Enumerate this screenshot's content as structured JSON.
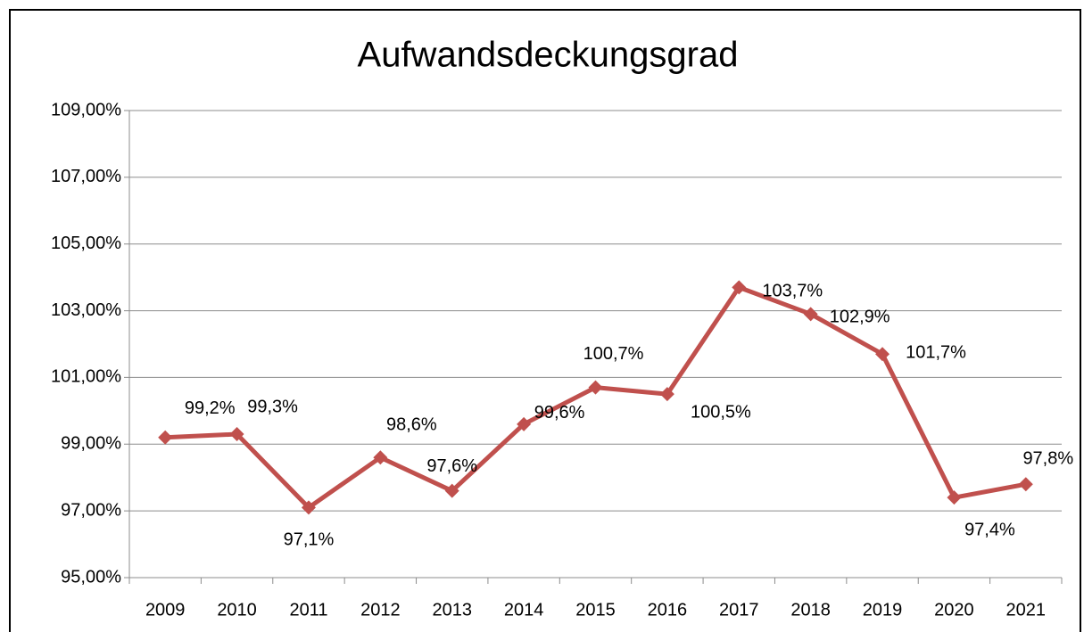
{
  "chart_data": {
    "type": "line",
    "title": "Aufwandsdeckungsgrad",
    "categories": [
      "2009",
      "2010",
      "2011",
      "2012",
      "2013",
      "2014",
      "2015",
      "2016",
      "2017",
      "2018",
      "2019",
      "2020",
      "2021"
    ],
    "series": [
      {
        "name": "Aufwandsdeckungsgrad",
        "color": "#c0504d",
        "values": [
          99.2,
          99.3,
          97.1,
          98.6,
          97.6,
          99.6,
          100.7,
          100.5,
          103.7,
          102.9,
          101.7,
          97.4,
          97.8
        ],
        "value_labels": [
          "99,2%",
          "99,3%",
          "97,1%",
          "98,6%",
          "97,6%",
          "99,6%",
          "100,7%",
          "100,5%",
          "103,7%",
          "102,9%",
          "101,7%",
          "97,4%",
          "97,8%"
        ]
      }
    ],
    "ylim": [
      95,
      109
    ],
    "yticks": [
      {
        "value": 95,
        "label": "95,00%"
      },
      {
        "value": 97,
        "label": "97,00%"
      },
      {
        "value": 99,
        "label": "99,00%"
      },
      {
        "value": 101,
        "label": "101,00%"
      },
      {
        "value": 103,
        "label": "103,00%"
      },
      {
        "value": 105,
        "label": "105,00%"
      },
      {
        "value": 107,
        "label": "107,00%"
      },
      {
        "value": 109,
        "label": "109,00%"
      }
    ],
    "grid": true
  }
}
